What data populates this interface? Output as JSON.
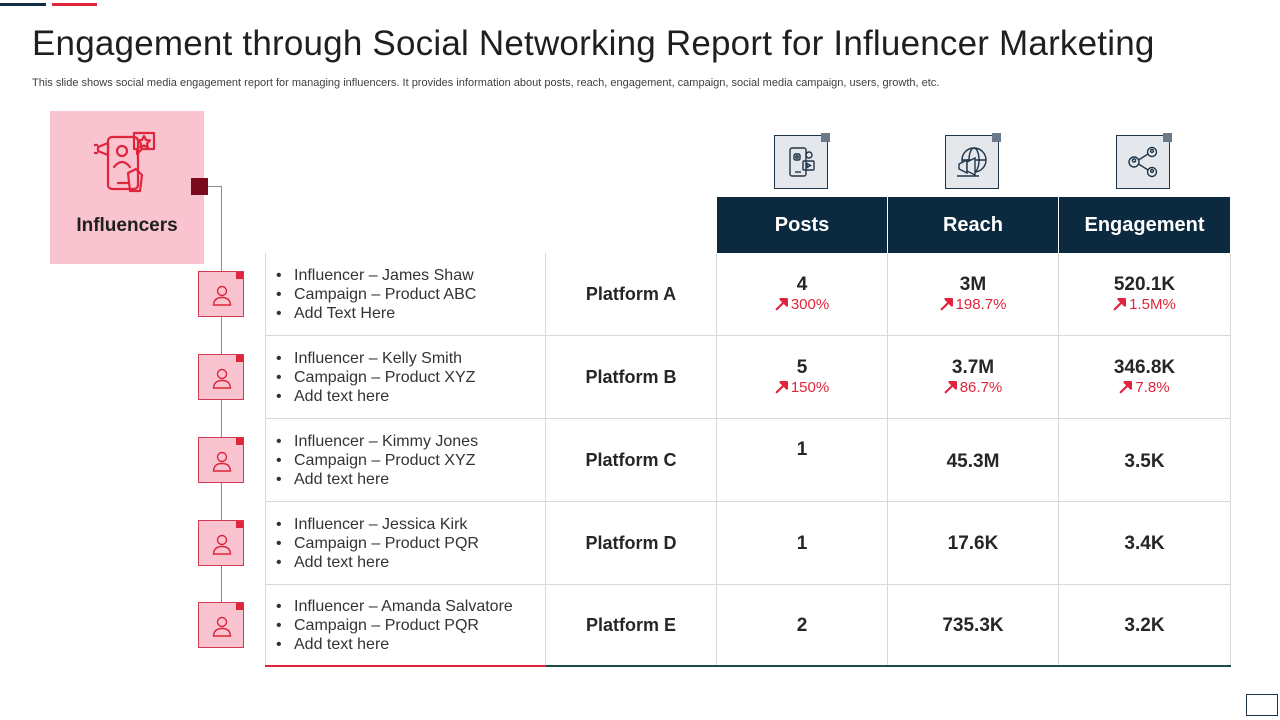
{
  "header": {
    "title": "Engagement through Social Networking Report for Influencer Marketing",
    "subtitle": "This slide shows social media engagement report for managing influencers. It provides information about posts, reach, engagement, campaign, social media campaign, users, growth, etc."
  },
  "influencers_panel": {
    "label": "Influencers",
    "icon": "influencer-megaphone-icon"
  },
  "columns": {
    "posts": {
      "label": "Posts",
      "icon": "social-media-phone-icon"
    },
    "reach": {
      "label": "Reach",
      "icon": "globe-megaphone-icon"
    },
    "engagement": {
      "label": "Engagement",
      "icon": "users-network-icon"
    }
  },
  "rows": [
    {
      "bullets": [
        "Influencer  – James Shaw",
        "Campaign – Product ABC",
        "Add Text Here"
      ],
      "platform": "Platform A",
      "posts": "4",
      "posts_growth": "300%",
      "reach": "3M",
      "reach_growth": "198.7%",
      "engagement": "520.1K",
      "engagement_growth": "1.5M%"
    },
    {
      "bullets": [
        "Influencer  – Kelly Smith",
        "Campaign – Product XYZ",
        "Add text here"
      ],
      "platform": "Platform B",
      "posts": "5",
      "posts_growth": "150%",
      "reach": "3.7M",
      "reach_growth": "86.7%",
      "engagement": "346.8K",
      "engagement_growth": "7.8%"
    },
    {
      "bullets": [
        "Influencer  – Kimmy Jones",
        "Campaign – Product XYZ",
        "Add text here"
      ],
      "platform": "Platform C",
      "posts": "1",
      "reach": "45.3M",
      "engagement": "3.5K"
    },
    {
      "bullets": [
        "Influencer  – Jessica Kirk",
        "Campaign – Product PQR",
        "Add text here"
      ],
      "platform": "Platform D",
      "posts": "1",
      "reach": "17.6K",
      "engagement": "3.4K"
    },
    {
      "bullets": [
        "Influencer  – Amanda Salvatore",
        "Campaign – Product PQR",
        "Add text here"
      ],
      "platform": "Platform E",
      "posts": "2",
      "reach": "735.3K",
      "engagement": "3.2K"
    }
  ],
  "colors": {
    "navy": "#0b2a40",
    "accent_red": "#e0243c",
    "pink": "#f9c4cf",
    "dark_red_marker": "#7a0a1e"
  }
}
